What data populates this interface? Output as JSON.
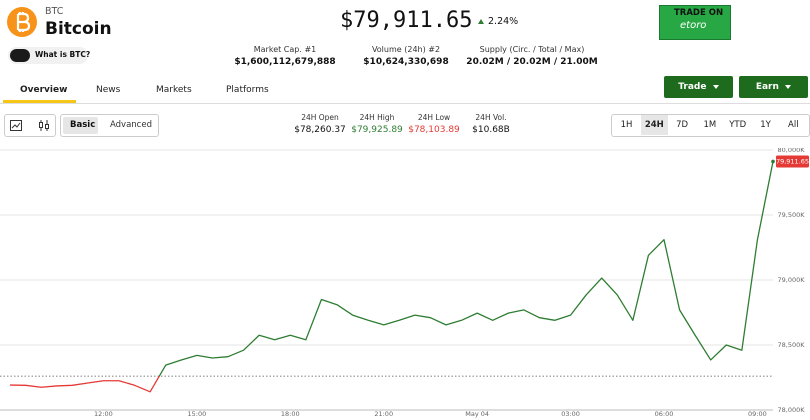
{
  "header": {
    "symbol": "BTC",
    "name": "Bitcoin",
    "what_is": "What is BTC?",
    "price": "$79,911.65",
    "change": "2.24%",
    "ad": {
      "line1": "TRADE ON",
      "line2": "etoro"
    }
  },
  "stats": [
    {
      "label": "Market Cap. #1",
      "value": "$1,600,112,679,888"
    },
    {
      "label": "Volume (24h) #2",
      "value": "$10,624,330,698"
    },
    {
      "label": "Supply (Circ. / Total / Max)",
      "value": "20.02M / 20.02M / 21.00M"
    }
  ],
  "buttons": [
    "Trade",
    "Earn"
  ],
  "tabs": [
    "Overview",
    "News",
    "Markets",
    "Platforms"
  ],
  "modes": [
    "Basic",
    "Advanced"
  ],
  "day_stats": [
    {
      "label": "24H Open",
      "value": "$78,260.37"
    },
    {
      "label": "24H High",
      "value": "$79,925.89"
    },
    {
      "label": "24H Low",
      "value": "$78,103.89"
    },
    {
      "label": "24H Vol.",
      "value": "$10.68B"
    }
  ],
  "ranges": [
    "1H",
    "24H",
    "7D",
    "1M",
    "YTD",
    "1Y",
    "All"
  ],
  "chart_data": {
    "type": "line",
    "categories": [
      null,
      null,
      null,
      null,
      null,
      null,
      "12:00",
      null,
      null,
      null,
      null,
      null,
      "15:00",
      null,
      null,
      null,
      null,
      null,
      "18:00",
      null,
      null,
      null,
      null,
      null,
      "21:00",
      null,
      null,
      null,
      null,
      null,
      "May 04",
      null,
      null,
      null,
      null,
      null,
      "03:00",
      null,
      null,
      null,
      null,
      null,
      "06:00",
      null,
      null,
      null,
      null,
      null,
      "09:00",
      null
    ],
    "values": [
      78192,
      78190,
      78175,
      78185,
      78190,
      78208,
      78225,
      78225,
      78190,
      78140,
      78345,
      78385,
      78420,
      78400,
      78410,
      78460,
      78575,
      78540,
      78575,
      78540,
      78850,
      78810,
      78730,
      78690,
      78655,
      78690,
      78730,
      78710,
      78655,
      78690,
      78745,
      78690,
      78745,
      78770,
      78710,
      78690,
      78730,
      78885,
      79015,
      78885,
      78690,
      79190,
      79310,
      78770,
      78575,
      78385,
      78500,
      78460,
      79310,
      79911.65
    ],
    "last_price_label": "79,911.65",
    "baseline": 78260.37,
    "up_color": "#2e7d32",
    "down_color": "#e53935",
    "ylim": [
      78000,
      80000
    ],
    "yticks": [
      {
        "value": 78000,
        "label": "78,000K"
      },
      {
        "value": 78500,
        "label": "78,500K"
      },
      {
        "value": 79000,
        "label": "79,000K"
      },
      {
        "value": 79500,
        "label": "79,500K"
      },
      {
        "value": 80000,
        "label": "80,000K"
      }
    ],
    "grid": true
  }
}
